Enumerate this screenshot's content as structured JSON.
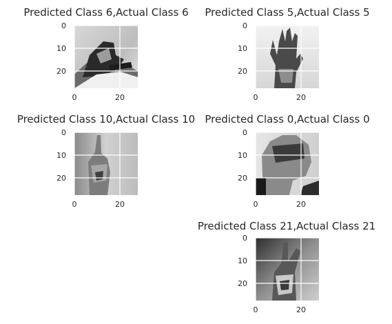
{
  "figure": {
    "subplots": [
      {
        "title": "Predicted Class 6,Actual Class 6",
        "y_ticks": [
          "0",
          "10",
          "20"
        ],
        "x_ticks": [
          "0",
          "20"
        ],
        "image": "hand-sign-6"
      },
      {
        "title": "Predicted Class 5,Actual Class 5",
        "y_ticks": [
          "0",
          "10",
          "20"
        ],
        "x_ticks": [
          "0",
          "20"
        ],
        "image": "hand-sign-5"
      },
      {
        "title": "Predicted Class 10,Actual Class 10",
        "y_ticks": [
          "0",
          "10",
          "20"
        ],
        "x_ticks": [
          "0",
          "20"
        ],
        "image": "hand-sign-10"
      },
      {
        "title": "Predicted Class 0,Actual Class 0",
        "y_ticks": [
          "0",
          "10",
          "20"
        ],
        "x_ticks": [
          "0",
          "20"
        ],
        "image": "hand-sign-0"
      },
      {
        "title": "Predicted Class 21,Actual Class 21",
        "y_ticks": [
          "0",
          "10",
          "20"
        ],
        "x_ticks": [
          "0",
          "20"
        ],
        "image": "hand-sign-21"
      }
    ]
  },
  "colors": {
    "grid": "#ffffff",
    "text": "#262626",
    "background": "#ffffff"
  }
}
